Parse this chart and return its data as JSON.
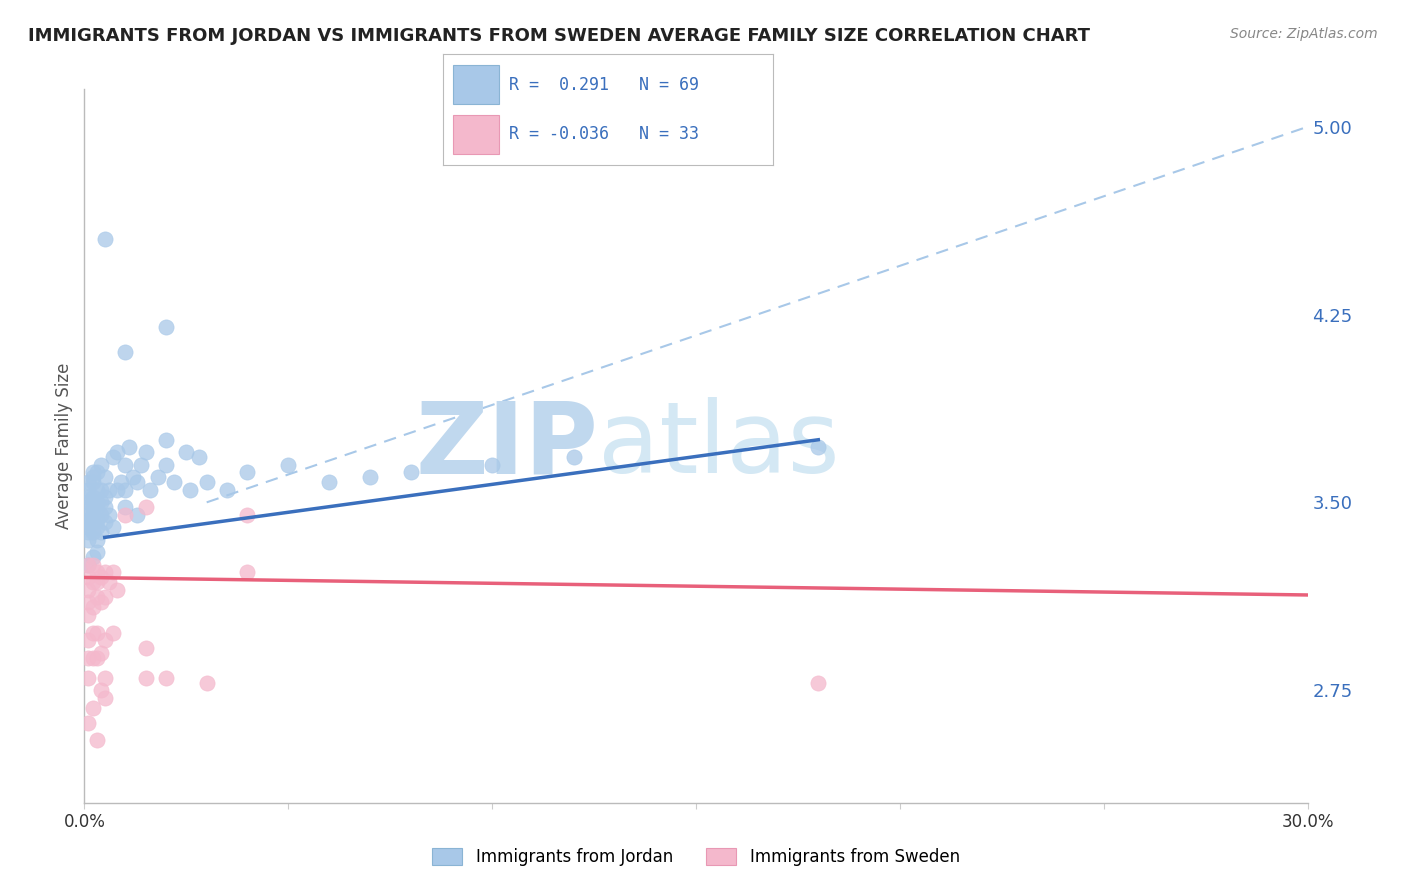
{
  "title": "IMMIGRANTS FROM JORDAN VS IMMIGRANTS FROM SWEDEN AVERAGE FAMILY SIZE CORRELATION CHART",
  "source": "Source: ZipAtlas.com",
  "ylabel": "Average Family Size",
  "xlim": [
    0.0,
    0.3
  ],
  "ylim": [
    2.3,
    5.15
  ],
  "yticks_right": [
    2.75,
    3.5,
    4.25,
    5.0
  ],
  "jordan_color": "#a8c8e8",
  "sweden_color": "#f4b8cc",
  "jordan_line_color": "#3a6fbd",
  "sweden_line_color": "#e8607a",
  "dashed_line_color": "#a8c8e8",
  "watermark_zip": "ZIP",
  "watermark_atlas": "atlas",
  "watermark_color": "#d8eaf6",
  "background_color": "#ffffff",
  "grid_color": "#cccccc",
  "right_tick_color": "#3a6fbd",
  "jordan_scatter": [
    [
      0.001,
      3.43
    ],
    [
      0.001,
      3.38
    ],
    [
      0.001,
      3.5
    ],
    [
      0.001,
      3.48
    ],
    [
      0.001,
      3.55
    ],
    [
      0.001,
      3.45
    ],
    [
      0.001,
      3.42
    ],
    [
      0.001,
      3.52
    ],
    [
      0.001,
      3.35
    ],
    [
      0.001,
      3.4
    ],
    [
      0.002,
      3.5
    ],
    [
      0.002,
      3.45
    ],
    [
      0.002,
      3.58
    ],
    [
      0.002,
      3.6
    ],
    [
      0.002,
      3.52
    ],
    [
      0.002,
      3.48
    ],
    [
      0.002,
      3.42
    ],
    [
      0.002,
      3.38
    ],
    [
      0.003,
      3.55
    ],
    [
      0.003,
      3.48
    ],
    [
      0.003,
      3.4
    ],
    [
      0.003,
      3.62
    ],
    [
      0.003,
      3.35
    ],
    [
      0.003,
      3.43
    ],
    [
      0.003,
      3.5
    ],
    [
      0.004,
      3.5
    ],
    [
      0.004,
      3.45
    ],
    [
      0.004,
      3.38
    ],
    [
      0.004,
      3.65
    ],
    [
      0.004,
      3.55
    ],
    [
      0.005,
      3.42
    ],
    [
      0.005,
      3.48
    ],
    [
      0.005,
      3.6
    ],
    [
      0.005,
      3.52
    ],
    [
      0.006,
      3.55
    ],
    [
      0.006,
      3.45
    ],
    [
      0.007,
      3.68
    ],
    [
      0.007,
      3.4
    ],
    [
      0.008,
      3.55
    ],
    [
      0.008,
      3.7
    ],
    [
      0.009,
      3.58
    ],
    [
      0.01,
      3.65
    ],
    [
      0.01,
      3.48
    ],
    [
      0.01,
      3.55
    ],
    [
      0.011,
      3.72
    ],
    [
      0.012,
      3.6
    ],
    [
      0.013,
      3.58
    ],
    [
      0.013,
      3.45
    ],
    [
      0.014,
      3.65
    ],
    [
      0.015,
      3.7
    ],
    [
      0.016,
      3.55
    ],
    [
      0.018,
      3.6
    ],
    [
      0.02,
      3.65
    ],
    [
      0.02,
      3.75
    ],
    [
      0.022,
      3.58
    ],
    [
      0.025,
      3.7
    ],
    [
      0.026,
      3.55
    ],
    [
      0.028,
      3.68
    ],
    [
      0.03,
      3.58
    ],
    [
      0.035,
      3.55
    ],
    [
      0.04,
      3.62
    ],
    [
      0.05,
      3.65
    ],
    [
      0.06,
      3.58
    ],
    [
      0.07,
      3.6
    ],
    [
      0.08,
      3.62
    ],
    [
      0.1,
      3.65
    ],
    [
      0.12,
      3.68
    ],
    [
      0.18,
      3.72
    ],
    [
      0.01,
      4.1
    ],
    [
      0.005,
      4.55
    ],
    [
      0.02,
      4.2
    ],
    [
      0.001,
      3.25
    ],
    [
      0.002,
      3.28
    ],
    [
      0.003,
      3.3
    ],
    [
      0.001,
      3.58
    ],
    [
      0.002,
      3.62
    ]
  ],
  "sweden_scatter": [
    [
      0.001,
      3.2
    ],
    [
      0.001,
      3.15
    ],
    [
      0.001,
      3.1
    ],
    [
      0.001,
      3.05
    ],
    [
      0.001,
      2.95
    ],
    [
      0.001,
      2.88
    ],
    [
      0.001,
      2.8
    ],
    [
      0.001,
      3.25
    ],
    [
      0.002,
      3.18
    ],
    [
      0.002,
      3.08
    ],
    [
      0.002,
      2.98
    ],
    [
      0.002,
      2.88
    ],
    [
      0.002,
      3.25
    ],
    [
      0.003,
      3.22
    ],
    [
      0.003,
      3.12
    ],
    [
      0.003,
      2.98
    ],
    [
      0.003,
      2.88
    ],
    [
      0.003,
      3.18
    ],
    [
      0.004,
      3.2
    ],
    [
      0.004,
      3.1
    ],
    [
      0.004,
      2.9
    ],
    [
      0.004,
      2.75
    ],
    [
      0.005,
      3.22
    ],
    [
      0.005,
      3.12
    ],
    [
      0.005,
      2.95
    ],
    [
      0.006,
      3.18
    ],
    [
      0.007,
      3.22
    ],
    [
      0.007,
      2.98
    ],
    [
      0.008,
      3.15
    ],
    [
      0.01,
      3.45
    ],
    [
      0.015,
      3.48
    ],
    [
      0.04,
      3.45
    ],
    [
      0.04,
      3.22
    ],
    [
      0.18,
      2.78
    ],
    [
      0.001,
      2.62
    ],
    [
      0.005,
      2.72
    ],
    [
      0.005,
      2.8
    ],
    [
      0.015,
      2.92
    ],
    [
      0.015,
      2.8
    ],
    [
      0.02,
      2.8
    ],
    [
      0.03,
      2.78
    ],
    [
      0.002,
      2.68
    ],
    [
      0.003,
      2.55
    ]
  ],
  "jordan_trendline": [
    [
      0.005,
      3.36
    ],
    [
      0.18,
      3.75
    ]
  ],
  "sweden_trendline": [
    [
      0.0,
      3.2
    ],
    [
      0.3,
      3.13
    ]
  ],
  "dashed_line": [
    [
      0.03,
      3.5
    ],
    [
      0.3,
      5.0
    ]
  ]
}
